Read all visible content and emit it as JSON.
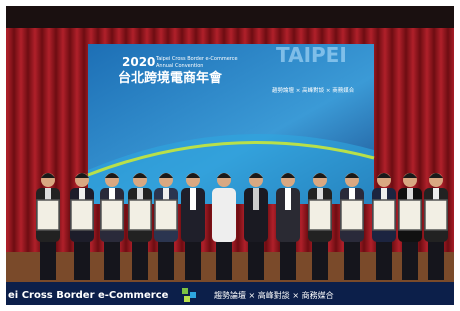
{
  "screen": {
    "year": "2020",
    "subtitle_line1": "Taipei Cross Border e-Commerce",
    "subtitle_line2": "Annual Convention",
    "title_zh": "台北跨境電商年會",
    "city": "TAIPEI",
    "tagline": "趨勢論壇 × 高峰對談 × 商務媒合"
  },
  "banner": {
    "text": "ei Cross Border e-Commerce",
    "tagline": "趨勢論壇 × 高峰對談 × 商務媒合"
  }
}
